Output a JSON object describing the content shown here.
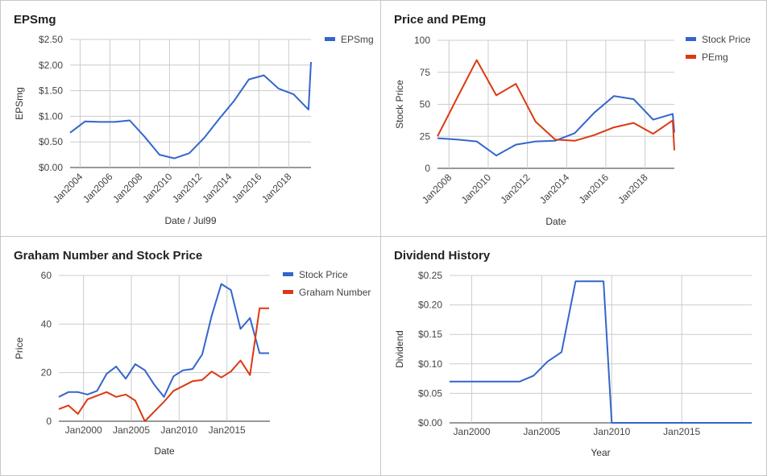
{
  "colors": {
    "blue": "#3366cc",
    "red": "#dc3912",
    "grid": "#cccccc",
    "axis": "#333333",
    "tick": "#444444"
  },
  "chart_data": [
    {
      "id": "epsmg",
      "type": "line",
      "title": "EPSmg",
      "xlabel": "Date / Jul99",
      "ylabel": "EPSmg",
      "x_type": "date",
      "xlim": [
        "2003-05-01",
        "2019-07-01"
      ],
      "ylim": [
        0,
        2.5
      ],
      "yticks": [
        0,
        0.5,
        1.0,
        1.5,
        2.0,
        2.5
      ],
      "ytick_labels": [
        "$0.00",
        "$0.50",
        "$1.00",
        "$1.50",
        "$2.00",
        "$2.50"
      ],
      "xticks": [
        "2004-01-01",
        "2006-01-01",
        "2008-01-01",
        "2010-01-01",
        "2012-01-01",
        "2014-01-01",
        "2016-01-01",
        "2018-01-01"
      ],
      "xtick_labels": [
        "Jan2004",
        "Jan2006",
        "Jan2008",
        "Jan2010",
        "Jan2012",
        "Jan2014",
        "Jan2016",
        "Jan2018"
      ],
      "xtick_rotated": true,
      "grid": true,
      "legend": "right",
      "series": [
        {
          "name": "EPSmg",
          "color": "#3366cc",
          "x": [
            "2003-05-01",
            "2004-05-01",
            "2005-05-01",
            "2006-05-01",
            "2007-05-01",
            "2008-05-01",
            "2009-05-01",
            "2010-05-01",
            "2011-05-01",
            "2012-05-01",
            "2013-05-01",
            "2014-05-01",
            "2015-05-01",
            "2016-05-01",
            "2017-05-01",
            "2018-05-01",
            "2019-05-01",
            "2019-07-01"
          ],
          "y": [
            0.68,
            0.9,
            0.89,
            0.89,
            0.92,
            0.6,
            0.25,
            0.18,
            0.28,
            0.58,
            0.95,
            1.3,
            1.72,
            1.8,
            1.54,
            1.43,
            1.13,
            2.06
          ]
        }
      ]
    },
    {
      "id": "price-pe",
      "type": "line",
      "title": "Price and PEmg",
      "xlabel": "Date",
      "ylabel": "Stock Price",
      "x_type": "date",
      "xlim": [
        "2007-06-01",
        "2019-07-01"
      ],
      "ylim": [
        0,
        100
      ],
      "yticks": [
        0,
        25,
        50,
        75,
        100
      ],
      "ytick_labels": [
        "0",
        "25",
        "50",
        "75",
        "100"
      ],
      "xticks": [
        "2008-01-01",
        "2010-01-01",
        "2012-01-01",
        "2014-01-01",
        "2016-01-01",
        "2018-01-01"
      ],
      "xtick_labels": [
        "Jan2008",
        "Jan2010",
        "Jan2012",
        "Jan2014",
        "Jan2016",
        "Jan2018"
      ],
      "xtick_rotated": true,
      "grid": true,
      "legend": "right",
      "series": [
        {
          "name": "Stock Price",
          "color": "#3366cc",
          "x": [
            "2007-06-01",
            "2008-06-01",
            "2009-06-01",
            "2010-06-01",
            "2011-06-01",
            "2012-06-01",
            "2013-06-01",
            "2014-06-01",
            "2015-06-01",
            "2016-06-01",
            "2017-06-01",
            "2018-06-01",
            "2019-06-01",
            "2019-07-01"
          ],
          "y": [
            23.5,
            22.5,
            21,
            10,
            18.5,
            21,
            21.5,
            27.5,
            43.5,
            56.5,
            54,
            38,
            42.5,
            28
          ]
        },
        {
          "name": "PEmg",
          "color": "#dc3912",
          "x": [
            "2007-06-01",
            "2008-06-01",
            "2009-06-01",
            "2010-06-01",
            "2011-06-01",
            "2012-06-01",
            "2013-06-01",
            "2014-06-01",
            "2015-06-01",
            "2016-06-01",
            "2017-06-01",
            "2018-06-01",
            "2019-06-01",
            "2019-07-01"
          ],
          "y": [
            25,
            55,
            84.5,
            57,
            66,
            36.5,
            22.5,
            21.5,
            26,
            32,
            35.5,
            27,
            37.5,
            14
          ]
        }
      ]
    },
    {
      "id": "graham",
      "type": "line",
      "title": "Graham Number and Stock Price",
      "xlabel": "Date",
      "ylabel": "Price",
      "x_type": "date",
      "xlim": [
        "1997-06-01",
        "2019-07-01"
      ],
      "ylim": [
        0,
        60
      ],
      "yticks": [
        0,
        20,
        40,
        60
      ],
      "ytick_labels": [
        "0",
        "20",
        "40",
        "60"
      ],
      "xticks": [
        "2000-01-01",
        "2005-01-01",
        "2010-01-01",
        "2015-01-01"
      ],
      "xtick_labels": [
        "Jan2000",
        "Jan2005",
        "Jan2010",
        "Jan2015"
      ],
      "xtick_rotated": false,
      "grid": true,
      "legend": "right",
      "series": [
        {
          "name": "Stock Price",
          "color": "#3366cc",
          "x": [
            "1997-06-01",
            "1998-06-01",
            "1999-06-01",
            "2000-06-01",
            "2001-06-01",
            "2002-06-01",
            "2003-06-01",
            "2004-06-01",
            "2005-06-01",
            "2006-06-01",
            "2007-06-01",
            "2008-06-01",
            "2009-06-01",
            "2010-06-01",
            "2011-06-01",
            "2012-06-01",
            "2013-06-01",
            "2014-06-01",
            "2015-06-01",
            "2016-06-01",
            "2017-06-01",
            "2018-06-01",
            "2019-06-01"
          ],
          "y": [
            10,
            12,
            12,
            11,
            12.5,
            19.5,
            22.5,
            17.5,
            23.5,
            21,
            15,
            10,
            18.5,
            21,
            21.5,
            27.5,
            43.5,
            56.5,
            54,
            38,
            42.5,
            28,
            28
          ]
        },
        {
          "name": "Graham Number",
          "color": "#dc3912",
          "x": [
            "1997-06-01",
            "1998-06-01",
            "1999-06-01",
            "2000-06-01",
            "2001-06-01",
            "2002-06-01",
            "2003-06-01",
            "2004-06-01",
            "2005-06-01",
            "2006-06-01",
            "2007-06-01",
            "2008-06-01",
            "2009-06-01",
            "2010-06-01",
            "2011-06-01",
            "2012-06-01",
            "2013-06-01",
            "2014-06-01",
            "2015-06-01",
            "2016-06-01",
            "2017-06-01",
            "2018-06-01",
            "2019-06-01"
          ],
          "y": [
            5,
            6.5,
            3,
            9,
            10.5,
            12,
            10,
            11,
            8.5,
            0,
            4,
            8,
            12.5,
            14.5,
            16.5,
            17,
            20.5,
            18,
            20.5,
            25,
            19,
            46.5,
            46.5
          ]
        }
      ]
    },
    {
      "id": "dividend",
      "type": "line",
      "title": "Dividend History",
      "xlabel": "Year",
      "ylabel": "Dividend",
      "x_type": "date",
      "xlim": [
        "1998-06-01",
        "2019-12-31"
      ],
      "ylim": [
        0,
        0.25
      ],
      "yticks": [
        0,
        0.05,
        0.1,
        0.15,
        0.2,
        0.25
      ],
      "ytick_labels": [
        "$0.00",
        "$0.05",
        "$0.10",
        "$0.15",
        "$0.20",
        "$0.25"
      ],
      "xticks": [
        "2000-01-01",
        "2005-01-01",
        "2010-01-01",
        "2015-01-01"
      ],
      "xtick_labels": [
        "Jan2000",
        "Jan2005",
        "Jan2010",
        "Jan2015"
      ],
      "xtick_rotated": false,
      "grid": true,
      "legend": "none",
      "series": [
        {
          "name": "",
          "color": "#3366cc",
          "x": [
            "1998-06-01",
            "1999-06-01",
            "2000-06-01",
            "2001-06-01",
            "2002-06-01",
            "2003-06-01",
            "2004-06-01",
            "2005-06-01",
            "2006-06-01",
            "2007-06-01",
            "2008-06-01",
            "2009-06-01",
            "2010-01-01",
            "2011-06-01",
            "2013-06-01",
            "2015-06-01",
            "2017-06-01",
            "2019-12-31"
          ],
          "y": [
            0.07,
            0.07,
            0.07,
            0.07,
            0.07,
            0.07,
            0.08,
            0.104,
            0.12,
            0.24,
            0.24,
            0.24,
            0,
            0,
            0,
            0,
            0,
            0
          ]
        }
      ]
    }
  ]
}
